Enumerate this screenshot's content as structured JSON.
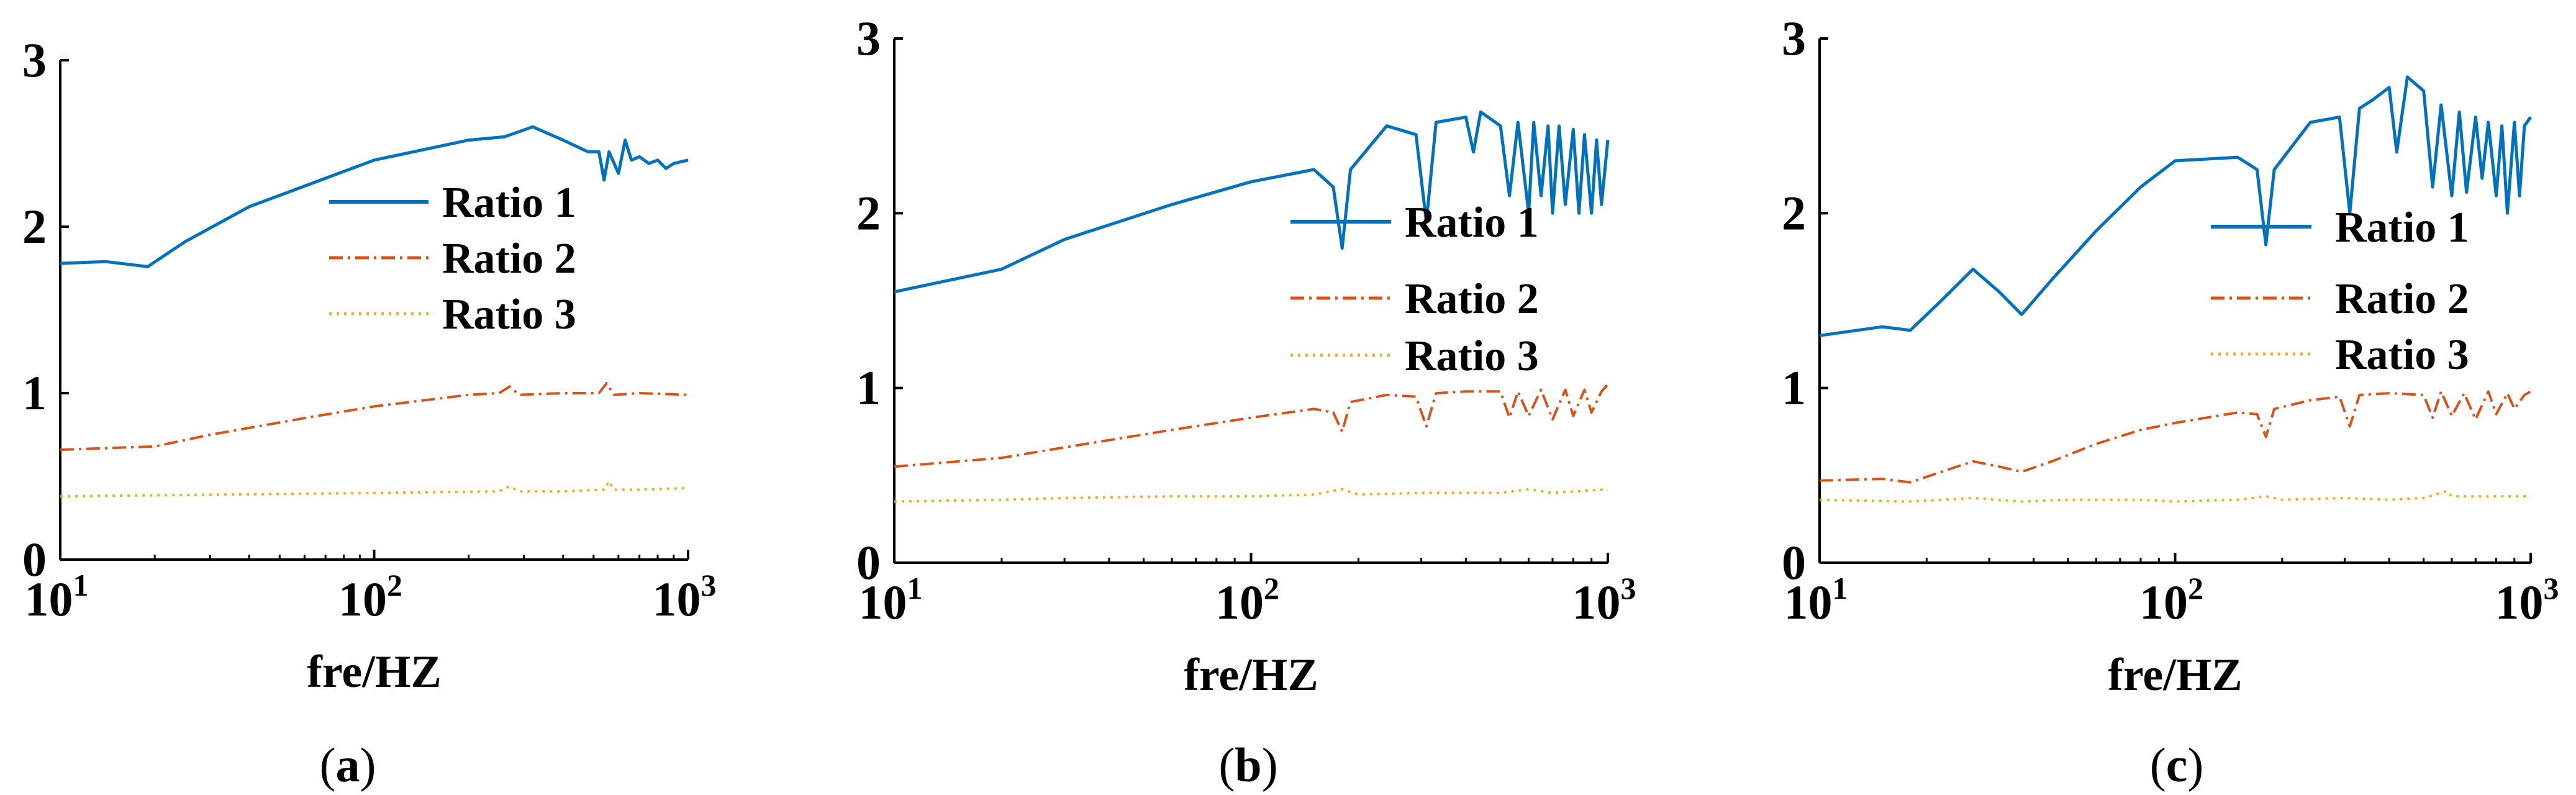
{
  "chart_data": [
    {
      "type": "line",
      "panel": "a",
      "caption": {
        "open": "(",
        "letter": "a",
        "close": ")"
      },
      "title": "",
      "xlabel": "fre/HZ",
      "ylabel": "",
      "xscale": "log",
      "xlim": [
        10,
        1000
      ],
      "ylim": [
        0,
        3
      ],
      "yticks": [
        0,
        1,
        2,
        3
      ],
      "xticks": [
        {
          "value": 10,
          "base": "10",
          "exp": "1"
        },
        {
          "value": 100,
          "base": "10",
          "exp": "2"
        },
        {
          "value": 1000,
          "base": "10",
          "exp": "3"
        }
      ],
      "legend": {
        "position": "middle-right"
      },
      "series": [
        {
          "name": "Ratio 1",
          "color": "#0072BD",
          "style": "solid",
          "x": [
            10,
            14,
            19,
            25,
            40,
            100,
            200,
            260,
            320,
            400,
            480,
            520,
            540,
            560,
            600,
            630,
            660,
            700,
            750,
            800,
            850,
            900,
            1000
          ],
          "y": [
            1.78,
            1.79,
            1.76,
            1.91,
            2.12,
            2.4,
            2.52,
            2.54,
            2.6,
            2.52,
            2.45,
            2.45,
            2.28,
            2.45,
            2.32,
            2.52,
            2.4,
            2.42,
            2.38,
            2.4,
            2.35,
            2.38,
            2.4
          ]
        },
        {
          "name": "Ratio 2",
          "color": "#D95319",
          "style": "dashdot",
          "x": [
            10,
            20,
            30,
            60,
            100,
            200,
            250,
            270,
            290,
            400,
            520,
            550,
            580,
            700,
            1000
          ],
          "y": [
            0.66,
            0.68,
            0.75,
            0.85,
            0.92,
            0.99,
            1.0,
            1.04,
            0.99,
            1.0,
            1.0,
            1.06,
            0.99,
            1.0,
            0.99
          ]
        },
        {
          "name": "Ratio 3",
          "color": "#EDB120",
          "style": "dotted",
          "x": [
            10,
            30,
            100,
            250,
            270,
            290,
            400,
            540,
            560,
            580,
            700,
            1000
          ],
          "y": [
            0.38,
            0.39,
            0.4,
            0.41,
            0.44,
            0.41,
            0.41,
            0.42,
            0.47,
            0.42,
            0.42,
            0.43
          ]
        }
      ]
    },
    {
      "type": "line",
      "panel": "b",
      "caption": {
        "open": "(",
        "letter": "b",
        "close": ")"
      },
      "title": "",
      "xlabel": "fre/HZ",
      "ylabel": "",
      "xscale": "log",
      "xlim": [
        10,
        1000
      ],
      "ylim": [
        0,
        3
      ],
      "yticks": [
        0,
        1,
        2,
        3
      ],
      "xticks": [
        {
          "value": 10,
          "base": "10",
          "exp": "1"
        },
        {
          "value": 100,
          "base": "10",
          "exp": "2"
        },
        {
          "value": 1000,
          "base": "10",
          "exp": "3"
        }
      ],
      "legend": {
        "position": "middle-right"
      },
      "series": [
        {
          "name": "Ratio 1",
          "color": "#0072BD",
          "style": "solid",
          "x": [
            10,
            20,
            30,
            60,
            100,
            150,
            170,
            180,
            190,
            240,
            290,
            310,
            330,
            400,
            420,
            440,
            500,
            530,
            560,
            600,
            620,
            650,
            680,
            700,
            730,
            760,
            800,
            830,
            860,
            900,
            930,
            960,
            1000
          ],
          "y": [
            1.55,
            1.68,
            1.85,
            2.05,
            2.18,
            2.25,
            2.15,
            1.8,
            2.25,
            2.5,
            2.45,
            1.95,
            2.52,
            2.55,
            2.35,
            2.58,
            2.5,
            2.1,
            2.52,
            2.0,
            2.52,
            2.1,
            2.5,
            2.0,
            2.5,
            2.05,
            2.48,
            2.0,
            2.45,
            2.0,
            2.42,
            2.05,
            2.42
          ]
        },
        {
          "name": "Ratio 2",
          "color": "#D95319",
          "style": "dashdot",
          "x": [
            10,
            20,
            30,
            60,
            100,
            150,
            170,
            180,
            190,
            240,
            290,
            310,
            330,
            400,
            500,
            530,
            560,
            600,
            650,
            700,
            760,
            800,
            860,
            900,
            960,
            1000
          ],
          "y": [
            0.55,
            0.6,
            0.66,
            0.76,
            0.83,
            0.88,
            0.86,
            0.75,
            0.92,
            0.96,
            0.95,
            0.78,
            0.97,
            0.98,
            0.98,
            0.83,
            0.98,
            0.84,
            0.99,
            0.82,
            0.99,
            0.84,
            0.99,
            0.86,
            0.98,
            1.02
          ]
        },
        {
          "name": "Ratio 3",
          "color": "#EDB120",
          "style": "dotted",
          "x": [
            10,
            20,
            30,
            60,
            100,
            150,
            180,
            200,
            300,
            400,
            500,
            600,
            700,
            1000
          ],
          "y": [
            0.35,
            0.36,
            0.37,
            0.38,
            0.38,
            0.39,
            0.42,
            0.39,
            0.4,
            0.4,
            0.4,
            0.42,
            0.4,
            0.42
          ]
        }
      ]
    },
    {
      "type": "line",
      "panel": "c",
      "caption": {
        "open": "(",
        "letter": "c",
        "close": ")"
      },
      "title": "",
      "xlabel": "fre/HZ",
      "ylabel": "",
      "xscale": "log",
      "xlim": [
        10,
        1000
      ],
      "ylim": [
        0,
        3
      ],
      "yticks": [
        0,
        1,
        2,
        3
      ],
      "xticks": [
        {
          "value": 10,
          "base": "10",
          "exp": "1"
        },
        {
          "value": 100,
          "base": "10",
          "exp": "2"
        },
        {
          "value": 1000,
          "base": "10",
          "exp": "3"
        }
      ],
      "legend": {
        "position": "middle-right"
      },
      "series": [
        {
          "name": "Ratio 1",
          "color": "#0072BD",
          "style": "solid",
          "x": [
            10,
            15,
            18,
            22,
            27,
            32,
            37,
            45,
            60,
            80,
            100,
            150,
            170,
            180,
            190,
            240,
            290,
            310,
            330,
            360,
            400,
            420,
            450,
            500,
            530,
            560,
            600,
            630,
            660,
            700,
            730,
            760,
            800,
            830,
            860,
            900,
            930,
            960,
            1000
          ],
          "y": [
            1.3,
            1.35,
            1.33,
            1.5,
            1.68,
            1.55,
            1.42,
            1.62,
            1.9,
            2.15,
            2.3,
            2.32,
            2.25,
            1.82,
            2.25,
            2.52,
            2.55,
            2.0,
            2.6,
            2.65,
            2.72,
            2.35,
            2.78,
            2.7,
            2.15,
            2.62,
            2.1,
            2.58,
            2.12,
            2.55,
            2.2,
            2.52,
            2.1,
            2.5,
            2.0,
            2.52,
            2.1,
            2.5,
            2.55
          ]
        },
        {
          "name": "Ratio 2",
          "color": "#D95319",
          "style": "dashdot",
          "x": [
            10,
            15,
            18,
            22,
            27,
            32,
            37,
            45,
            60,
            80,
            100,
            150,
            170,
            180,
            190,
            240,
            290,
            310,
            330,
            400,
            500,
            530,
            560,
            600,
            650,
            700,
            760,
            800,
            860,
            900,
            960,
            1000
          ],
          "y": [
            0.47,
            0.48,
            0.46,
            0.52,
            0.58,
            0.55,
            0.52,
            0.58,
            0.68,
            0.76,
            0.8,
            0.86,
            0.85,
            0.72,
            0.88,
            0.93,
            0.95,
            0.78,
            0.96,
            0.97,
            0.96,
            0.83,
            0.98,
            0.84,
            0.97,
            0.82,
            0.98,
            0.85,
            0.97,
            0.88,
            0.96,
            0.98
          ]
        },
        {
          "name": "Ratio 3",
          "color": "#EDB120",
          "style": "dotted",
          "x": [
            10,
            18,
            27,
            37,
            50,
            80,
            100,
            150,
            180,
            200,
            300,
            400,
            500,
            580,
            600,
            700,
            1000
          ],
          "y": [
            0.36,
            0.35,
            0.37,
            0.35,
            0.36,
            0.36,
            0.35,
            0.36,
            0.38,
            0.36,
            0.37,
            0.36,
            0.37,
            0.41,
            0.38,
            0.38,
            0.38
          ]
        }
      ]
    }
  ]
}
